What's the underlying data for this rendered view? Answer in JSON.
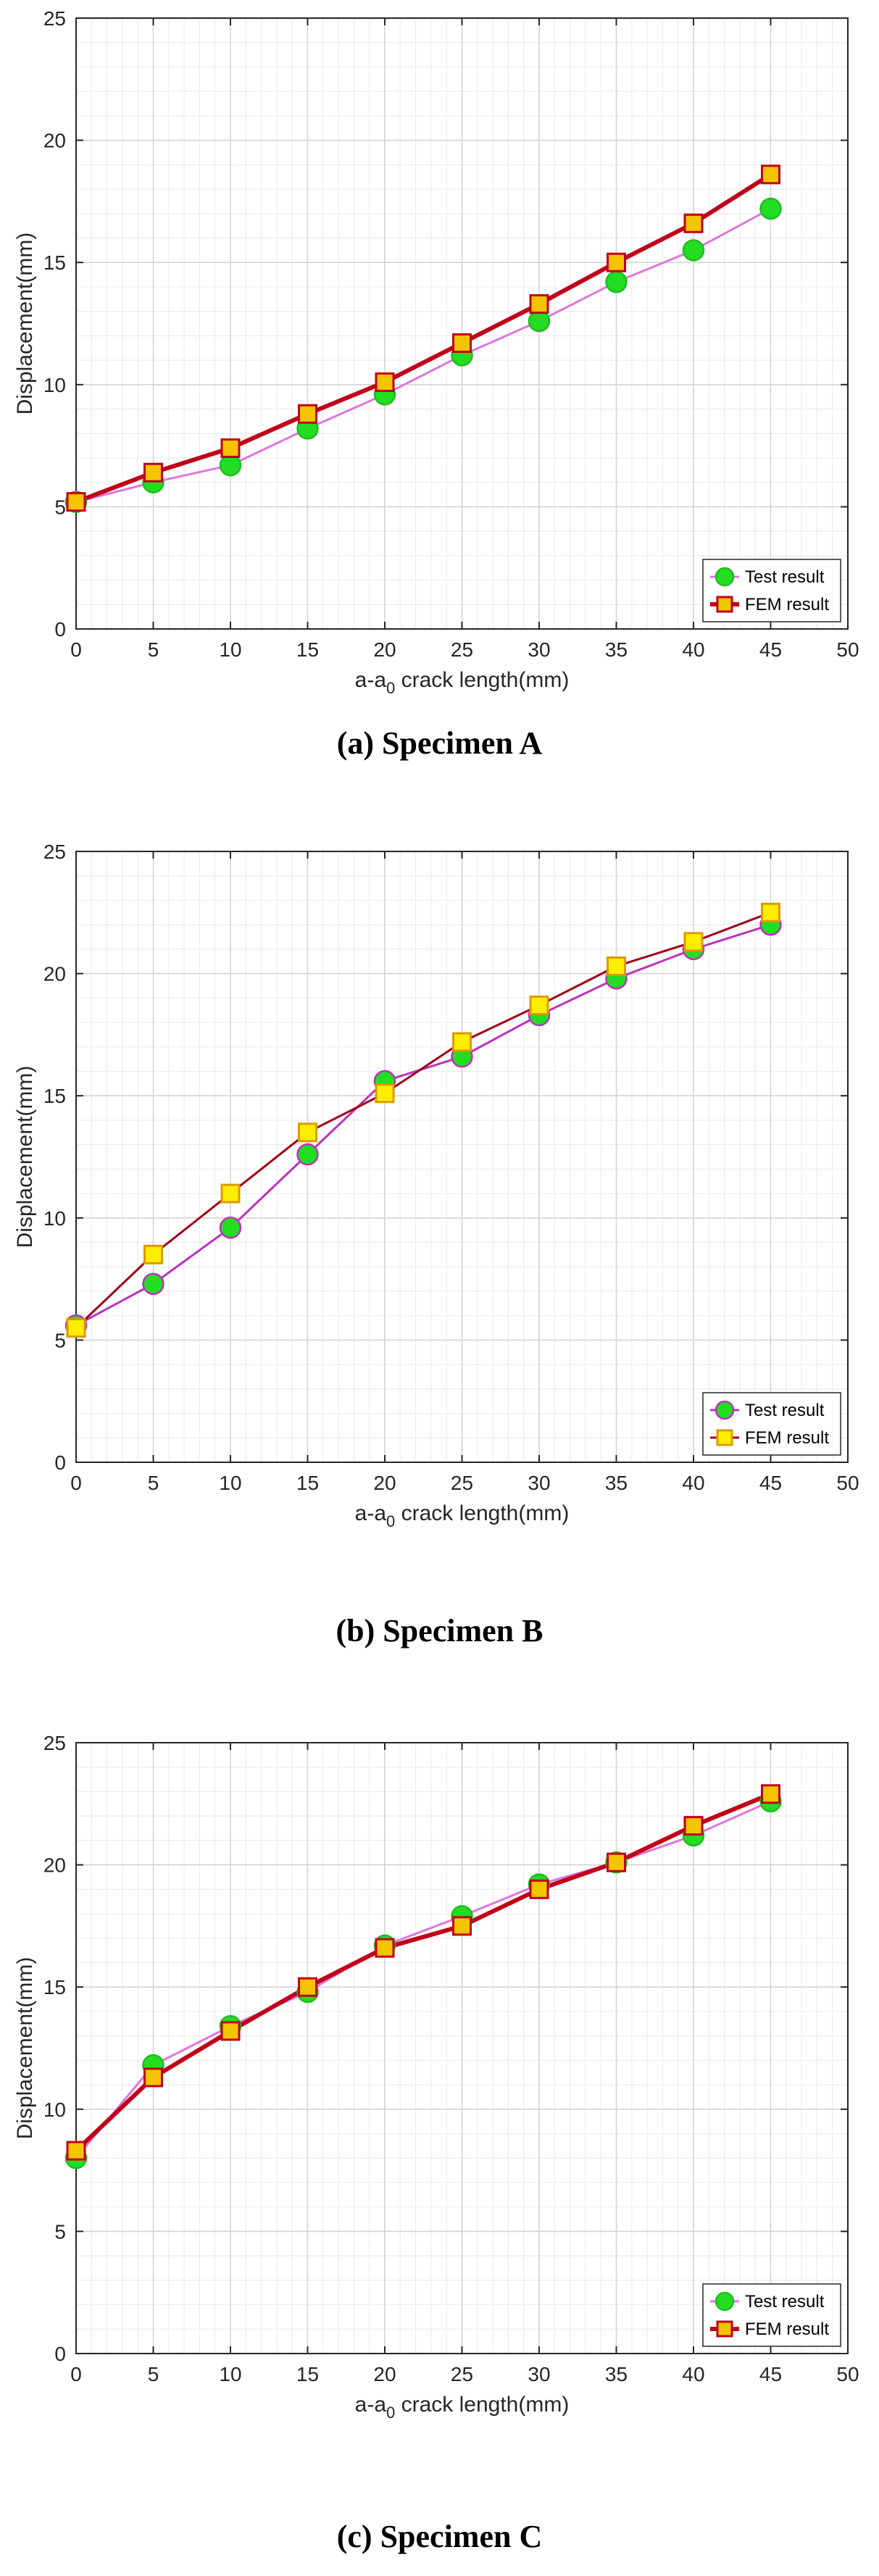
{
  "chart_data": [
    {
      "type": "line",
      "title": "",
      "caption": "(a) Specimen A",
      "xlabel_main": "a-a",
      "xlabel_sub": "0",
      "xlabel_rest": " crack length(mm)",
      "ylabel": "Displacement(mm)",
      "xlim": [
        0,
        50
      ],
      "ylim": [
        0,
        25
      ],
      "xticks": [
        0,
        5,
        10,
        15,
        20,
        25,
        30,
        35,
        40,
        45,
        50
      ],
      "yticks": [
        0,
        5,
        10,
        15,
        20,
        25
      ],
      "grid": true,
      "legend_position": "bottom-right",
      "x": [
        0,
        5,
        10,
        15,
        20,
        25,
        30,
        35,
        40,
        45
      ],
      "series": [
        {
          "name": "Test result",
          "values": [
            5.2,
            6.0,
            6.7,
            8.2,
            9.6,
            11.2,
            12.6,
            14.2,
            15.5,
            17.2
          ]
        },
        {
          "name": "FEM result",
          "values": [
            5.2,
            6.4,
            7.4,
            8.8,
            10.1,
            11.7,
            13.3,
            15.0,
            16.6,
            18.6
          ]
        }
      ]
    },
    {
      "type": "line",
      "title": "",
      "caption": "(b) Specimen B",
      "xlabel_main": "a-a",
      "xlabel_sub": "0",
      "xlabel_rest": " crack length(mm)",
      "ylabel": "Displacement(mm)",
      "xlim": [
        0,
        50
      ],
      "ylim": [
        0,
        25
      ],
      "xticks": [
        0,
        5,
        10,
        15,
        20,
        25,
        30,
        35,
        40,
        45,
        50
      ],
      "yticks": [
        0,
        5,
        10,
        15,
        20,
        25
      ],
      "grid": true,
      "legend_position": "bottom-right",
      "x": [
        0,
        5,
        10,
        15,
        20,
        25,
        30,
        35,
        40,
        45
      ],
      "series": [
        {
          "name": "Test result",
          "values": [
            5.6,
            7.3,
            9.6,
            12.6,
            15.6,
            16.6,
            18.3,
            19.8,
            21.0,
            22.0
          ]
        },
        {
          "name": "FEM result",
          "values": [
            5.5,
            8.5,
            11.0,
            13.5,
            15.1,
            17.2,
            18.7,
            20.3,
            21.3,
            22.5
          ]
        }
      ]
    },
    {
      "type": "line",
      "title": "",
      "caption": "(c) Specimen C",
      "xlabel_main": "a-a",
      "xlabel_sub": "0",
      "xlabel_rest": " crack length(mm)",
      "ylabel": "Displacement(mm)",
      "xlim": [
        0,
        50
      ],
      "ylim": [
        0,
        25
      ],
      "xticks": [
        0,
        5,
        10,
        15,
        20,
        25,
        30,
        35,
        40,
        45,
        50
      ],
      "yticks": [
        0,
        5,
        10,
        15,
        20,
        25
      ],
      "grid": true,
      "legend_position": "bottom-right",
      "x": [
        0,
        5,
        10,
        15,
        20,
        25,
        30,
        35,
        40,
        45
      ],
      "series": [
        {
          "name": "Test result",
          "values": [
            8.0,
            11.8,
            13.4,
            14.8,
            16.7,
            17.9,
            19.2,
            20.1,
            21.2,
            22.6
          ]
        },
        {
          "name": "FEM result",
          "values": [
            8.3,
            11.3,
            13.2,
            15.0,
            16.6,
            17.5,
            19.0,
            20.1,
            21.6,
            22.9
          ]
        }
      ]
    }
  ],
  "styles": [
    {
      "test": {
        "fill": "#22dd22",
        "stroke": "#22bb22",
        "line": "#dd77dd",
        "lineWidth": 3,
        "marker": "circle"
      },
      "fem": {
        "fill": "#f5c400",
        "stroke": "#c0001a",
        "line": "#c0001a",
        "lineWidth": 6,
        "marker": "square"
      }
    },
    {
      "test": {
        "fill": "#bb33bb",
        "stroke": "#bb33bb",
        "line": "#bb33bb",
        "lineWidth": 3,
        "marker": "circle",
        "markerFill": "#22dd22"
      },
      "fem": {
        "fill": "#ffee00",
        "stroke": "#dd9900",
        "line": "#a0001a",
        "lineWidth": 3,
        "marker": "square"
      }
    },
    {
      "test": {
        "fill": "#22dd22",
        "stroke": "#22bb22",
        "line": "#dd77dd",
        "lineWidth": 3,
        "marker": "circle"
      },
      "fem": {
        "fill": "#f5c400",
        "stroke": "#c0001a",
        "line": "#c0001a",
        "lineWidth": 6,
        "marker": "square"
      }
    }
  ]
}
